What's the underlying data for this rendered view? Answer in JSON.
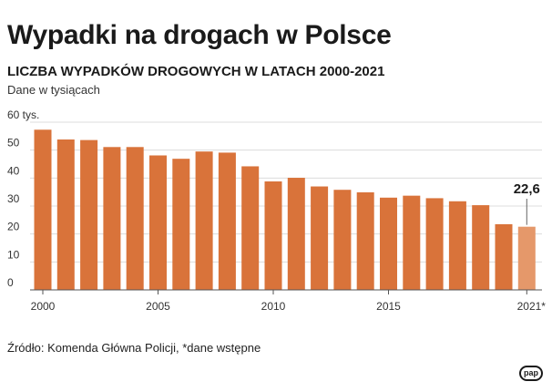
{
  "title": "Wypadki na drogach w Polsce",
  "chart_data": {
    "type": "bar",
    "title": "LICZBA WYPADKÓW DROGOWYCH W LATACH 2000-2021",
    "ylabel": "Dane w tysiącach",
    "ylim": [
      0,
      60
    ],
    "yticks": [
      0,
      10,
      20,
      30,
      40,
      50,
      60
    ],
    "ytick_labels": [
      "0",
      "10",
      "20",
      "30",
      "40",
      "50",
      "60 tys."
    ],
    "categories": [
      "2000",
      "2001",
      "2002",
      "2003",
      "2004",
      "2005",
      "2006",
      "2007",
      "2008",
      "2009",
      "2010",
      "2011",
      "2012",
      "2013",
      "2014",
      "2015",
      "2016",
      "2017",
      "2018",
      "2019",
      "2020",
      "2021"
    ],
    "xtick_labels": [
      "2000",
      "2005",
      "2010",
      "2015",
      "2021*"
    ],
    "xtick_categories": [
      "2000",
      "2005",
      "2010",
      "2015",
      "2021"
    ],
    "values": [
      57.3,
      53.8,
      53.6,
      51.1,
      51.1,
      48.1,
      46.9,
      49.5,
      49.1,
      44.2,
      38.8,
      40.1,
      37.0,
      35.8,
      34.9,
      33.0,
      33.7,
      32.8,
      31.7,
      30.3,
      23.5,
      22.6
    ],
    "annotation": {
      "category": "2021",
      "label": "22,6"
    },
    "grid": true,
    "colors": {
      "bar": "#d9733a",
      "bar_highlight": "#e5986a",
      "grid": "#dcdcdc"
    }
  },
  "source": "Źródło: Komenda Główna Policji, *dane wstępne",
  "logo": "pap"
}
